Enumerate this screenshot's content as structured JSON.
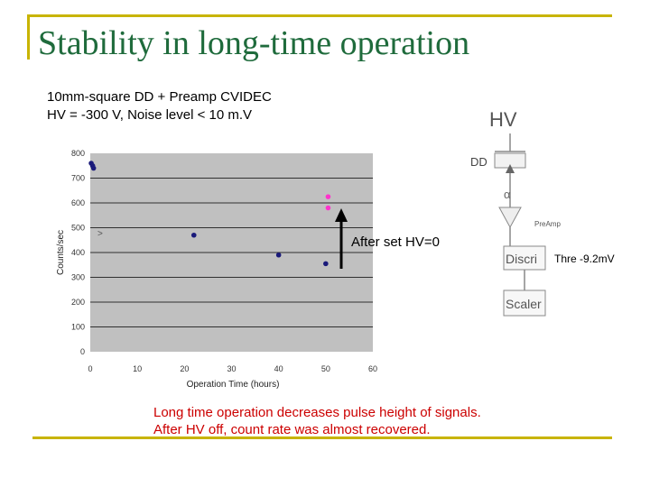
{
  "title": "Stability in long-time operation",
  "subtitle_line1": "10mm-square DD + Preamp CVIDEC",
  "subtitle_line2": "HV = -300 V, Noise level < 10 m.V",
  "annotation": "After set HV=0",
  "notes": {
    "line1": "Long time operation decreases pulse height of signals.",
    "line2": "After HV off, count rate was almost recovered."
  },
  "circuit": {
    "hv": "HV",
    "dd": "DD",
    "alpha": "α",
    "preamp": "PreAmp",
    "discri": "Discri",
    "scaler": "Scaler",
    "threshold": "Thre -9.2mV"
  },
  "colors": {
    "title": "#1f6b3c",
    "frame": "#c8b400",
    "plot_bg": "#c0c0c0",
    "series_main": "#1a1a7a",
    "series_after": "#ff33cc",
    "note": "#cc0000"
  },
  "chart_data": {
    "type": "scatter",
    "xlabel": "Operation Time (hours)",
    "ylabel": "Counts/sec",
    "xlim": [
      0,
      60
    ],
    "ylim": [
      0,
      800
    ],
    "xticks": [
      "0",
      "10",
      "20",
      "30",
      "40",
      "50",
      "60"
    ],
    "yticks": [
      "0",
      "100",
      "200",
      "300",
      "400",
      "500",
      "600",
      "700",
      "800"
    ],
    "grid": "horizontal",
    "series": [
      {
        "color": "#1a1a7a",
        "x": [
          0.2,
          0.5,
          0.7,
          22,
          40,
          50
        ],
        "y": [
          760,
          750,
          740,
          470,
          390,
          355
        ]
      },
      {
        "color": "#ff33cc",
        "x": [
          50.5,
          50.5
        ],
        "y": [
          625,
          580
        ]
      }
    ]
  }
}
